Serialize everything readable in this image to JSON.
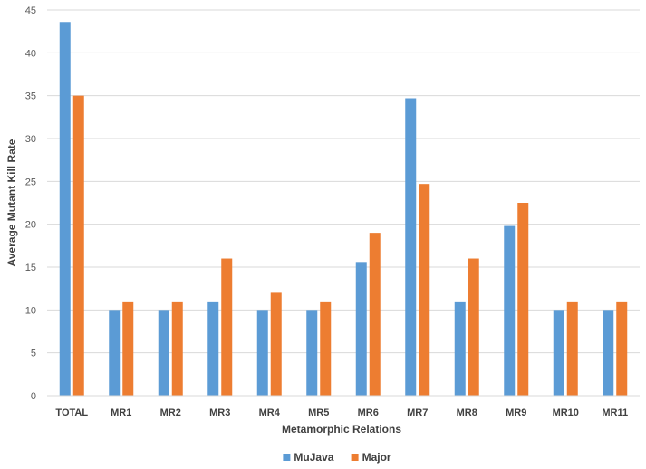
{
  "chart_data": {
    "type": "bar",
    "xlabel": "Metamorphic Relations",
    "ylabel": "Average Mutant Kill Rate",
    "ylim": [
      0,
      45
    ],
    "ytick_step": 5,
    "grid": true,
    "legend_position": "bottom",
    "categories": [
      "TOTAL",
      "MR1",
      "MR2",
      "MR3",
      "MR4",
      "MR5",
      "MR6",
      "MR7",
      "MR8",
      "MR9",
      "MR10",
      "MR11"
    ],
    "series": [
      {
        "name": "MuJava",
        "color": "#5B9BD5",
        "values": [
          43.6,
          10,
          10,
          11,
          10,
          10,
          15.6,
          34.7,
          11,
          19.8,
          10,
          10
        ]
      },
      {
        "name": "Major",
        "color": "#ED7D31",
        "values": [
          35.0,
          11,
          11,
          16,
          12,
          11,
          19,
          24.7,
          16,
          22.5,
          11,
          11
        ]
      }
    ]
  }
}
